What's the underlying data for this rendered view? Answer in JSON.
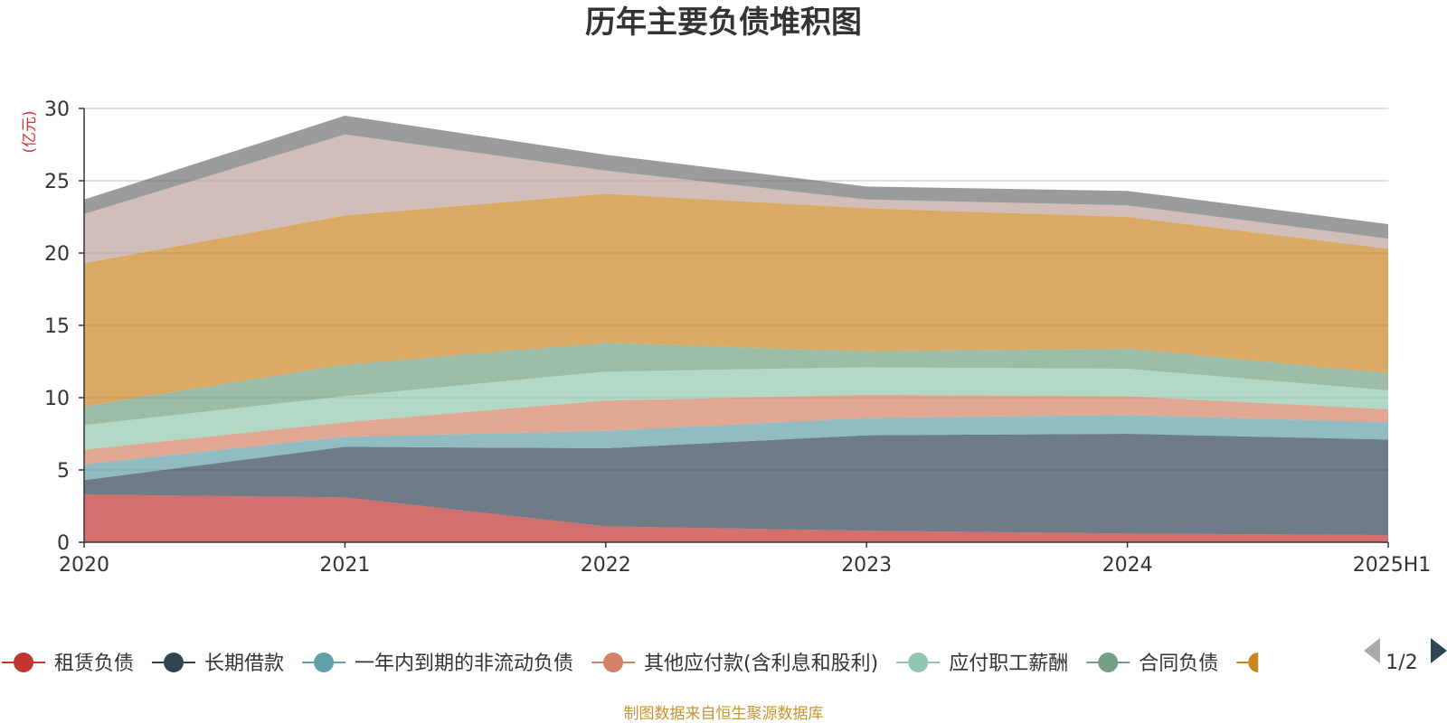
{
  "colors": {
    "source_text": "#c8962e",
    "unit_text": "#e03030",
    "axis": "#333333",
    "grid": "#cccccc"
  },
  "legend": {
    "page_indicator": "1/2",
    "prev_icon": "triangle-left-icon",
    "next_icon": "triangle-right-icon",
    "visible_items": [
      "租赁负债",
      "长期借款",
      "一年内到期的非流动负债",
      "其他应付款(含利息和股利)",
      "应付职工薪酬",
      "合同负债"
    ]
  },
  "source_note": "制图数据来自恒生聚源数据库",
  "chart_data": {
    "type": "area",
    "stacked": true,
    "title": "历年主要负债堆积图",
    "unit_label": "(亿元)",
    "x": [
      "2020",
      "2021",
      "2022",
      "2023",
      "2024",
      "2025H1"
    ],
    "ylim": [
      0,
      30
    ],
    "yticks": [
      0,
      5,
      10,
      15,
      20,
      25,
      30
    ],
    "grid": true,
    "legend_position": "bottom",
    "series": [
      {
        "name": "租赁负债",
        "color": "#c23531",
        "values": [
          3.3,
          3.1,
          1.1,
          0.8,
          0.6,
          0.5
        ]
      },
      {
        "name": "长期借款",
        "color": "#2f4554",
        "values": [
          1.0,
          3.5,
          5.4,
          6.6,
          6.9,
          6.6
        ]
      },
      {
        "name": "一年内到期的非流动负债",
        "color": "#61a0a8",
        "values": [
          1.1,
          0.7,
          1.2,
          1.2,
          1.3,
          1.2
        ]
      },
      {
        "name": "其他应付款(含利息和股利)",
        "color": "#d48265",
        "values": [
          1.0,
          1.0,
          2.1,
          1.6,
          1.3,
          0.9
        ]
      },
      {
        "name": "应付职工薪酬",
        "color": "#91c7ae",
        "values": [
          1.7,
          1.8,
          2.0,
          1.9,
          1.9,
          1.3
        ]
      },
      {
        "name": "合同负债",
        "color": "#749f83",
        "values": [
          1.3,
          2.2,
          2.0,
          1.1,
          1.4,
          1.2
        ]
      },
      {
        "color": "#ca8622",
        "values": [
          9.9,
          10.3,
          10.3,
          9.9,
          9.1,
          8.6
        ]
      },
      {
        "color": "#bda29a",
        "values": [
          3.4,
          5.6,
          1.6,
          0.6,
          0.8,
          0.7
        ]
      },
      {
        "color": "#6e7074",
        "values": [
          1.0,
          1.3,
          1.1,
          0.9,
          1.0,
          1.0
        ]
      }
    ]
  }
}
